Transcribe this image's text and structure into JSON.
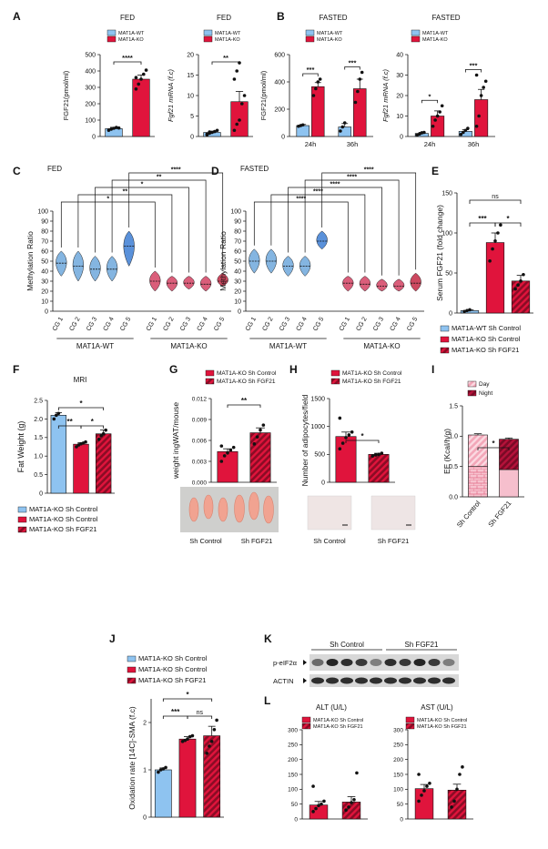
{
  "colors": {
    "wt": "#8ec3f0",
    "ko": "#e0143c",
    "ko_dark": "#b0102e",
    "violin_wt": "#6fa8dc",
    "violin_ko": "#d64d6b",
    "day": "#f3a6b8",
    "night": "#b5123a",
    "axis": "#111111"
  },
  "chart_data": [
    {
      "panel": "A",
      "sub": "A1",
      "type": "bar",
      "title": "FED",
      "legend": [
        "MAT1A-WT",
        "MAT1A-KO"
      ],
      "ylabel": "FGF21(pmol/ml)",
      "ylim": [
        0,
        500
      ],
      "yticks": [
        "0",
        "100",
        "200",
        "300",
        "400",
        "500"
      ],
      "categories": [
        "MAT1A-WT",
        "MAT1A-KO"
      ],
      "values": [
        48,
        350
      ],
      "errors": [
        8,
        25
      ],
      "points": [
        [
          38,
          45,
          50,
          55,
          52
        ],
        [
          290,
          320,
          350,
          380,
          405,
          360
        ]
      ],
      "sig": [
        {
          "from": 0,
          "to": 1,
          "label": "****"
        }
      ]
    },
    {
      "panel": "A",
      "sub": "A2",
      "type": "bar",
      "title": "FED",
      "legend": [
        "MAT1A-WT",
        "MAT1A-KO"
      ],
      "ylabel": "Fgf21 mRNA (f.c)",
      "ylim": [
        0,
        20
      ],
      "yticks": [
        "0",
        "5",
        "10",
        "15",
        "20"
      ],
      "categories": [
        "MAT1A-WT",
        "MAT1A-KO"
      ],
      "values": [
        1,
        8.5
      ],
      "errors": [
        0.3,
        2.5
      ],
      "points": [
        [
          0.4,
          0.8,
          1.0,
          1.2,
          1.5,
          0.6,
          1.1
        ],
        [
          1.5,
          3,
          4,
          8,
          10,
          14,
          16,
          18
        ]
      ],
      "sig": [
        {
          "from": 0,
          "to": 1,
          "label": "**"
        }
      ]
    },
    {
      "panel": "B",
      "sub": "B1",
      "type": "bar",
      "title": "FASTED",
      "legend": [
        "MAT1A-WT",
        "MAT1A-KO"
      ],
      "ylabel": "FGF21(pmol/ml)",
      "ylim": [
        0,
        600
      ],
      "yticks": [
        "0",
        "200",
        "400",
        "600"
      ],
      "categories": [
        "24h",
        "36h"
      ],
      "series": [
        {
          "name": "MAT1A-WT",
          "values": [
            80,
            70
          ],
          "errors": [
            8,
            25
          ],
          "points": [
            [
              75,
              80,
              85
            ],
            [
              40,
              70,
              100
            ]
          ]
        },
        {
          "name": "MAT1A-KO",
          "values": [
            365,
            350
          ],
          "errors": [
            30,
            70
          ],
          "points": [
            [
              300,
              350,
              400,
              420
            ],
            [
              250,
              330,
              420,
              470
            ]
          ]
        }
      ],
      "sig": [
        {
          "group": 0,
          "label": "***"
        },
        {
          "group": 1,
          "label": "***"
        }
      ]
    },
    {
      "panel": "B",
      "sub": "B2",
      "type": "bar",
      "title": "FASTED",
      "legend": [
        "MAT1A-WT",
        "MAT1A-KO"
      ],
      "ylabel": "Fgf21 mRNA (f.c)",
      "ylim": [
        0,
        40
      ],
      "yticks": [
        "0",
        "10",
        "20",
        "30",
        "40"
      ],
      "categories": [
        "24h",
        "36h"
      ],
      "series": [
        {
          "name": "MAT1A-WT",
          "values": [
            1.5,
            2.5
          ],
          "errors": [
            0.5,
            0.8
          ],
          "points": [
            [
              0.8,
              1.2,
              1.8,
              2.0
            ],
            [
              1.0,
              2.0,
              3.0,
              4.0
            ]
          ]
        },
        {
          "name": "MAT1A-KO",
          "values": [
            10,
            18
          ],
          "errors": [
            2.5,
            5
          ],
          "points": [
            [
              5,
              8,
              10,
              12,
              15
            ],
            [
              5,
              10,
              20,
              24,
              27,
              30
            ]
          ]
        }
      ],
      "sig": [
        {
          "group": 0,
          "label": "*"
        },
        {
          "group": 1,
          "label": "***"
        }
      ]
    },
    {
      "panel": "C",
      "sub": "C",
      "type": "violin",
      "title": "FED",
      "ylabel": "Methylation Ratio",
      "ylim": [
        0,
        100
      ],
      "yticks": [
        "0",
        "10",
        "20",
        "30",
        "40",
        "50",
        "60",
        "70",
        "80",
        "90",
        "100"
      ],
      "categories": [
        "CG 1",
        "CG 2",
        "CG 3",
        "CG 4",
        "CG 5",
        "CG 1",
        "CG 2",
        "CG 3",
        "CG 4",
        "CG 5"
      ],
      "groups": [
        "MAT1A-WT",
        "MAT1A-KO"
      ],
      "medians": [
        48,
        45,
        42,
        42,
        65,
        30,
        28,
        28,
        27,
        30
      ],
      "mins": [
        35,
        30,
        30,
        30,
        45,
        20,
        20,
        22,
        20,
        25
      ],
      "maxs": [
        60,
        60,
        55,
        55,
        80,
        40,
        35,
        35,
        35,
        38
      ],
      "sig": [
        {
          "from": 0,
          "to": 5,
          "label": "*"
        },
        {
          "from": 1,
          "to": 6,
          "label": "**"
        },
        {
          "from": 2,
          "to": 7,
          "label": "*"
        },
        {
          "from": 3,
          "to": 8,
          "label": "**"
        },
        {
          "from": 4,
          "to": 9,
          "label": "****"
        }
      ]
    },
    {
      "panel": "D",
      "sub": "D",
      "type": "violin",
      "title": "FASTED",
      "ylabel": "Methylation Ratio",
      "ylim": [
        0,
        100
      ],
      "yticks": [
        "0",
        "10",
        "20",
        "30",
        "40",
        "50",
        "60",
        "70",
        "80",
        "90",
        "100"
      ],
      "categories": [
        "CG 1",
        "CG 2",
        "CG 3",
        "CG 4",
        "CG 5",
        "CG 1",
        "CG 2",
        "CG 3",
        "CG 4",
        "CG 5"
      ],
      "groups": [
        "MAT1A-WT",
        "MAT1A-KO"
      ],
      "medians": [
        50,
        50,
        45,
        45,
        70,
        28,
        27,
        25,
        25,
        28
      ],
      "mins": [
        38,
        38,
        35,
        35,
        62,
        20,
        20,
        20,
        20,
        20
      ],
      "maxs": [
        62,
        62,
        55,
        55,
        80,
        35,
        35,
        32,
        32,
        38
      ],
      "sig": [
        {
          "from": 0,
          "to": 5,
          "label": "****"
        },
        {
          "from": 1,
          "to": 6,
          "label": "****"
        },
        {
          "from": 2,
          "to": 7,
          "label": "****"
        },
        {
          "from": 3,
          "to": 8,
          "label": "****"
        },
        {
          "from": 4,
          "to": 9,
          "label": "****"
        }
      ]
    },
    {
      "panel": "E",
      "sub": "E",
      "type": "bar",
      "ylabel": "Serum FGF21 (fold change)",
      "ylim": [
        0,
        150
      ],
      "yticks": [
        "0",
        "50",
        "100",
        "150"
      ],
      "categories": [
        "MAT1A-WT Sh Control",
        "MAT1A-KO Sh Control",
        "MAT1A-KO Sh FGF21"
      ],
      "legend": [
        "MAT1A-WT Sh Control",
        "MAT1A-KO Sh Control",
        "MAT1A-KO Sh FGF21"
      ],
      "values": [
        3,
        88,
        40
      ],
      "errors": [
        1,
        12,
        7
      ],
      "points": [
        [
          2,
          3,
          4
        ],
        [
          65,
          80,
          90,
          100,
          110
        ],
        [
          30,
          35,
          40,
          48
        ]
      ],
      "sig": [
        {
          "from": 0,
          "to": 1,
          "label": "***"
        },
        {
          "from": 1,
          "to": 2,
          "label": "*"
        },
        {
          "from": 0,
          "to": 2,
          "label": "ns"
        }
      ]
    },
    {
      "panel": "F",
      "sub": "F",
      "type": "bar",
      "title": "MRI",
      "ylabel": "Fat Weight (g)",
      "ylim": [
        0,
        2.5
      ],
      "yticks": [
        "0",
        "0.5",
        "1.0",
        "1.5",
        "2.0",
        "2.5"
      ],
      "categories": [
        "MAT1A-KO Sh Control",
        "MAT1A-KO Sh Control",
        "MAT1A-KO Sh FGF21"
      ],
      "legend": [
        "MAT1A-KO Sh Control",
        "MAT1A-KO Sh Control",
        "MAT1A-KO Sh FGF21"
      ],
      "values": [
        2.1,
        1.32,
        1.6
      ],
      "errors": [
        0.07,
        0.04,
        0.1
      ],
      "points": [
        [
          2.0,
          2.1,
          2.15
        ],
        [
          1.25,
          1.3,
          1.33,
          1.35,
          1.38
        ],
        [
          1.45,
          1.55,
          1.6,
          1.7
        ]
      ],
      "sig": [
        {
          "from": 0,
          "to": 1,
          "label": "**"
        },
        {
          "from": 1,
          "to": 2,
          "label": "*"
        },
        {
          "from": 0,
          "to": 2,
          "label": "*"
        }
      ]
    },
    {
      "panel": "G",
      "sub": "G",
      "type": "bar",
      "legend": [
        "MAT1A-KO Sh Control",
        "MAT1A-KO Sh FGF21"
      ],
      "ylabel": "weight ingWAT/mouse",
      "ylim": [
        0,
        0.012
      ],
      "yticks": [
        "0.000",
        "0.003",
        "0.006",
        "0.009",
        "0.012"
      ],
      "categories": [
        "Sh Control",
        "Sh FGF21"
      ],
      "values": [
        0.0044,
        0.0071
      ],
      "errors": [
        0.0004,
        0.0007
      ],
      "points": [
        [
          0.003,
          0.0038,
          0.0042,
          0.0046,
          0.005,
          0.0052
        ],
        [
          0.0055,
          0.0065,
          0.0075,
          0.0082
        ]
      ],
      "sig": [
        {
          "from": 0,
          "to": 1,
          "label": "**"
        }
      ]
    },
    {
      "panel": "H",
      "sub": "H",
      "type": "bar",
      "legend": [
        "MAT1A-KO Sh Control",
        "MAT1A-KO Sh FGF21"
      ],
      "ylabel": "Number of adipocytes/field",
      "ylim": [
        0,
        1500
      ],
      "yticks": [
        "0",
        "500",
        "1000",
        "1500"
      ],
      "categories": [
        "Sh Control",
        "Sh FGF21"
      ],
      "values": [
        820,
        500
      ],
      "errors": [
        80,
        20
      ],
      "points": [
        [
          600,
          700,
          800,
          850,
          900,
          1150
        ],
        [
          470,
          490,
          500,
          520
        ]
      ],
      "sig": [
        {
          "from": 0,
          "to": 1,
          "label": "*"
        }
      ]
    },
    {
      "panel": "I",
      "sub": "I",
      "type": "stacked-bar",
      "legend": [
        "Day",
        "Night"
      ],
      "ylabel": "EE (Kcal/h/g)",
      "ylim": [
        0,
        1.5
      ],
      "yticks": [
        "0.0",
        "0.5",
        "1.0",
        "1.5"
      ],
      "categories": [
        "Sh Control",
        "Sh FGF21"
      ],
      "series": [
        {
          "name": "Day",
          "values": [
            0.5,
            0.45
          ]
        },
        {
          "name": "Night",
          "values": [
            0.52,
            0.5
          ]
        }
      ],
      "sig": [
        {
          "from": 0,
          "to": 1,
          "label": "*"
        }
      ]
    },
    {
      "panel": "J",
      "sub": "J",
      "type": "bar",
      "legend": [
        "MAT1A-KO Sh Control",
        "MAT1A-KO Sh Control",
        "MAT1A-KO Sh FGF21"
      ],
      "ylabel": "Oxidation rate [14C]-SMA (f.c)",
      "ylim": [
        0,
        2.5
      ],
      "yticks": [
        "0",
        "1",
        "2"
      ],
      "categories": [
        "MAT1A-KO Sh Control",
        "MAT1A-KO Sh Control",
        "MAT1A-KO Sh FGF21"
      ],
      "values": [
        1.0,
        1.65,
        1.72
      ],
      "errors": [
        0.04,
        0.05,
        0.2
      ],
      "points": [
        [
          0.95,
          1.0,
          1.02,
          1.05
        ],
        [
          1.6,
          1.62,
          1.65,
          1.7,
          1.72
        ],
        [
          1.35,
          1.5,
          1.6,
          1.85,
          2.05
        ]
      ],
      "sig": [
        {
          "from": 0,
          "to": 1,
          "label": "***"
        },
        {
          "from": 1,
          "to": 2,
          "label": "ns"
        },
        {
          "from": 0,
          "to": 2,
          "label": "*"
        }
      ]
    },
    {
      "panel": "L",
      "sub": "L1",
      "type": "bar",
      "title": "ALT (U/L)",
      "legend": [
        "MAT1A-KO Sh Control",
        "MAT1A-KO Sh FGF21"
      ],
      "ylim": [
        0,
        300
      ],
      "yticks": [
        "0",
        "50",
        "100",
        "150",
        "200",
        "250",
        "300"
      ],
      "categories": [
        "MAT1A-KO Sh Control",
        "MAT1A-KO Sh FGF21"
      ],
      "values": [
        47,
        57
      ],
      "errors": [
        12,
        18
      ],
      "points": [
        [
          25,
          35,
          45,
          50,
          60,
          110
        ],
        [
          30,
          40,
          55,
          65,
          155
        ]
      ],
      "sig": []
    },
    {
      "panel": "L",
      "sub": "L2",
      "type": "bar",
      "title": "AST (U/L)",
      "legend": [
        "MAT1A-KO Sh Control",
        "MAT1A-KO Sh FGF21"
      ],
      "ylim": [
        0,
        300
      ],
      "yticks": [
        "0",
        "50",
        "100",
        "150",
        "200",
        "250",
        "300"
      ],
      "categories": [
        "MAT1A-KO Sh Control",
        "MAT1A-KO Sh FGF21"
      ],
      "values": [
        102,
        97
      ],
      "errors": [
        14,
        20
      ],
      "points": [
        [
          60,
          80,
          95,
          110,
          120,
          150
        ],
        [
          40,
          60,
          100,
          150,
          175
        ]
      ],
      "sig": []
    }
  ],
  "blot": {
    "groups": [
      "Sh Control",
      "Sh FGF21"
    ],
    "rows": [
      "p-eIF2α",
      "ACTIN"
    ]
  },
  "photo_labels": {
    "G": [
      "Sh Control",
      "Sh FGF21"
    ],
    "H": [
      "Sh Control",
      "Sh FGF21"
    ]
  },
  "panel_letters": [
    "A",
    "B",
    "C",
    "D",
    "E",
    "F",
    "G",
    "H",
    "I",
    "J",
    "K",
    "L"
  ]
}
